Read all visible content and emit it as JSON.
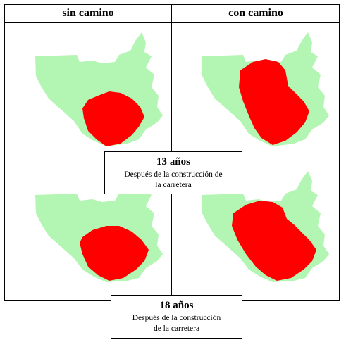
{
  "columns": {
    "left_header": "sin camino",
    "right_header": "con camino"
  },
  "colors": {
    "forest": "#b3f5b3",
    "deforested": "#ff0000",
    "border": "#000000"
  },
  "panels": [
    {
      "column": "sin camino",
      "period": "13 años"
    },
    {
      "column": "con camino",
      "period": "13 años"
    },
    {
      "column": "sin camino",
      "period": "18 años"
    },
    {
      "column": "con camino",
      "period": "18 años"
    }
  ],
  "captions": [
    {
      "years": "13 años",
      "line1": "Después de la construcción de",
      "line2": "la carretera"
    },
    {
      "years": "18 años",
      "line1": "Después de la construcción",
      "line2": "de la carretera"
    }
  ]
}
